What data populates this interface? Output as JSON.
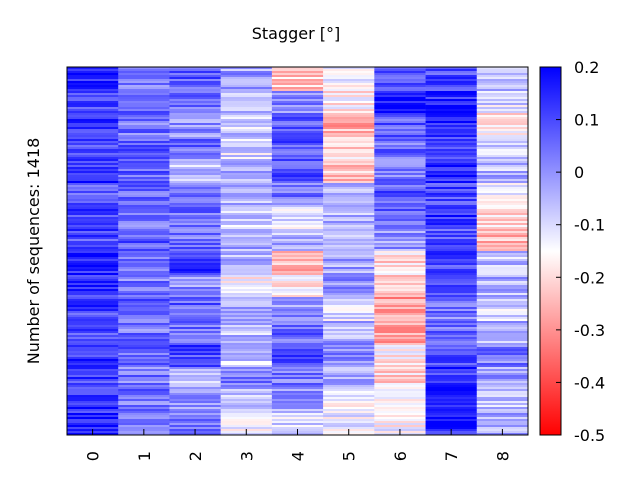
{
  "chart_data": {
    "type": "heatmap",
    "title": "Stagger [°]",
    "xlabel": "",
    "ylabel": "Number of sequences: 1418",
    "categories": [
      "0",
      "1",
      "2",
      "3",
      "4",
      "5",
      "6",
      "7",
      "8"
    ],
    "colorbar": {
      "min": -0.5,
      "max": 0.2,
      "ticks": [
        "0.2",
        "0.1",
        "0",
        "-0.1",
        "-0.2",
        "-0.3",
        "-0.4",
        "-0.5"
      ],
      "colors": {
        "low": "#ff0000",
        "mid": "#ffffff",
        "high": "#0000ff"
      },
      "mid_value": -0.15
    },
    "column_mean_profiles": [
      [
        0.14,
        0.1,
        0.12,
        0.08,
        0.13,
        0.09,
        0.12,
        0.1,
        0.15,
        0.14,
        0.11,
        0.09,
        0.12,
        0.12,
        0.13,
        0.14
      ],
      [
        0.04,
        0.05,
        0.04,
        0.06,
        0.07,
        0.05,
        0.04,
        0.08,
        0.05,
        0.03,
        0.06,
        0.04,
        0.05,
        0.03,
        0.04,
        0.05
      ],
      [
        0.08,
        0.06,
        0.0,
        0.05,
        -0.06,
        0.02,
        0.04,
        0.05,
        0.12,
        0.0,
        0.07,
        0.06,
        0.1,
        -0.05,
        0.0,
        0.03
      ],
      [
        -0.02,
        -0.07,
        -0.08,
        -0.1,
        -0.05,
        -0.06,
        -0.08,
        -0.03,
        -0.05,
        -0.16,
        -0.02,
        -0.06,
        -0.07,
        0.04,
        -0.05,
        -0.14
      ],
      [
        -0.22,
        0.02,
        0.08,
        0.09,
        0.1,
        0.04,
        -0.12,
        -0.05,
        -0.24,
        -0.18,
        0.0,
        0.06,
        0.12,
        0.04,
        -0.02,
        -0.1
      ],
      [
        -0.15,
        -0.17,
        -0.26,
        -0.2,
        -0.22,
        -0.06,
        -0.05,
        -0.08,
        -0.02,
        0.0,
        -0.1,
        -0.04,
        0.02,
        -0.05,
        -0.14,
        -0.12
      ],
      [
        0.06,
        0.18,
        0.07,
        0.05,
        0.04,
        0.08,
        0.06,
        0.0,
        -0.2,
        -0.22,
        -0.28,
        -0.26,
        -0.16,
        -0.2,
        -0.12,
        -0.15
      ],
      [
        0.1,
        0.14,
        0.15,
        0.12,
        0.14,
        0.1,
        0.12,
        0.1,
        0.11,
        0.08,
        0.03,
        0.05,
        0.1,
        0.12,
        0.15,
        0.16
      ],
      [
        -0.06,
        -0.1,
        -0.18,
        -0.08,
        -0.05,
        -0.12,
        -0.2,
        -0.24,
        -0.06,
        -0.04,
        -0.1,
        -0.05,
        0.03,
        -0.02,
        -0.06,
        -0.04
      ]
    ],
    "grid": false,
    "legend": "colorbar-right"
  }
}
